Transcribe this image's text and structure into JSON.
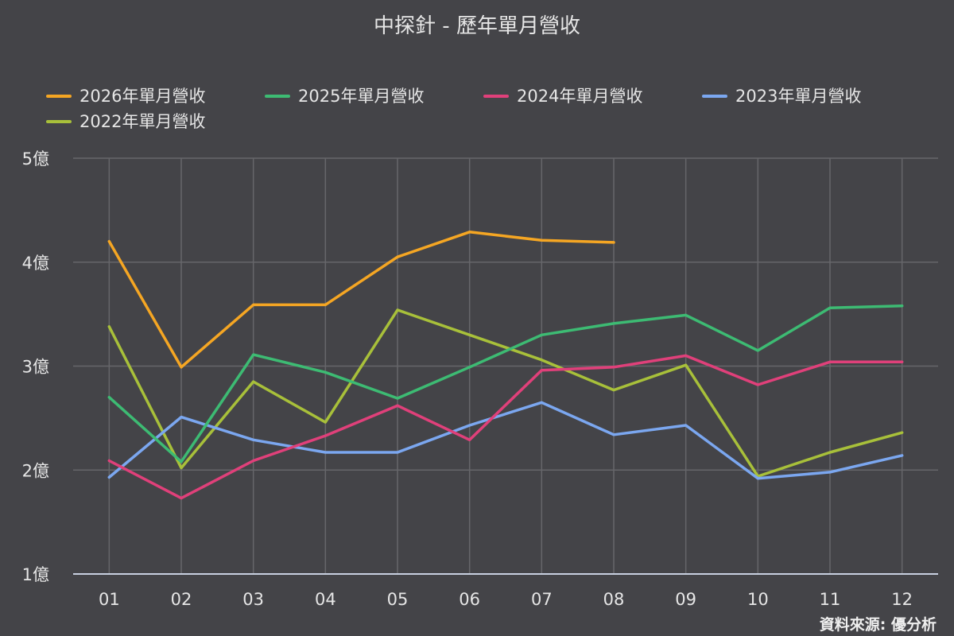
{
  "page": {
    "title": "中探針 - 歷年單月營收",
    "source": "資料來源: 優分析"
  },
  "colors": {
    "background": "#444448",
    "grid": "#66666a",
    "baseline": "#c8d0e0",
    "text": "#e6e6e6"
  },
  "chart_data": {
    "type": "line",
    "title": "中探針 - 歷年單月營收",
    "categories": [
      "01",
      "02",
      "03",
      "04",
      "05",
      "06",
      "07",
      "08",
      "09",
      "10",
      "11",
      "12"
    ],
    "ylim": [
      1,
      5
    ],
    "yticks": [
      1,
      2,
      3,
      4,
      5
    ],
    "ytick_labels": [
      "1億",
      "2億",
      "3億",
      "4億",
      "5億"
    ],
    "grid": true,
    "legend_position": "top-left",
    "series": [
      {
        "name": "2026年單月營收",
        "color": "#f5a623",
        "values": [
          4.2,
          2.99,
          3.59,
          3.59,
          4.05,
          4.29,
          4.21,
          4.19,
          null,
          null,
          null,
          null
        ]
      },
      {
        "name": "2025年單月營收",
        "color": "#3dbb73",
        "values": [
          2.7,
          2.08,
          3.11,
          2.94,
          2.69,
          2.99,
          3.3,
          3.41,
          3.49,
          3.15,
          3.56,
          3.58
        ]
      },
      {
        "name": "2024年單月營收",
        "color": "#e0407a",
        "values": [
          2.09,
          1.73,
          2.09,
          2.33,
          2.62,
          2.29,
          2.96,
          2.99,
          3.1,
          2.82,
          3.04,
          3.04
        ]
      },
      {
        "name": "2023年單月營收",
        "color": "#7ba7f0",
        "values": [
          1.93,
          2.51,
          2.29,
          2.17,
          2.17,
          2.43,
          2.65,
          2.34,
          2.43,
          1.92,
          1.98,
          2.14
        ]
      },
      {
        "name": "2022年單月營收",
        "color": "#a8c03a",
        "values": [
          3.38,
          2.02,
          2.85,
          2.46,
          3.54,
          3.3,
          3.06,
          2.77,
          3.01,
          1.94,
          2.17,
          2.36
        ]
      }
    ]
  }
}
